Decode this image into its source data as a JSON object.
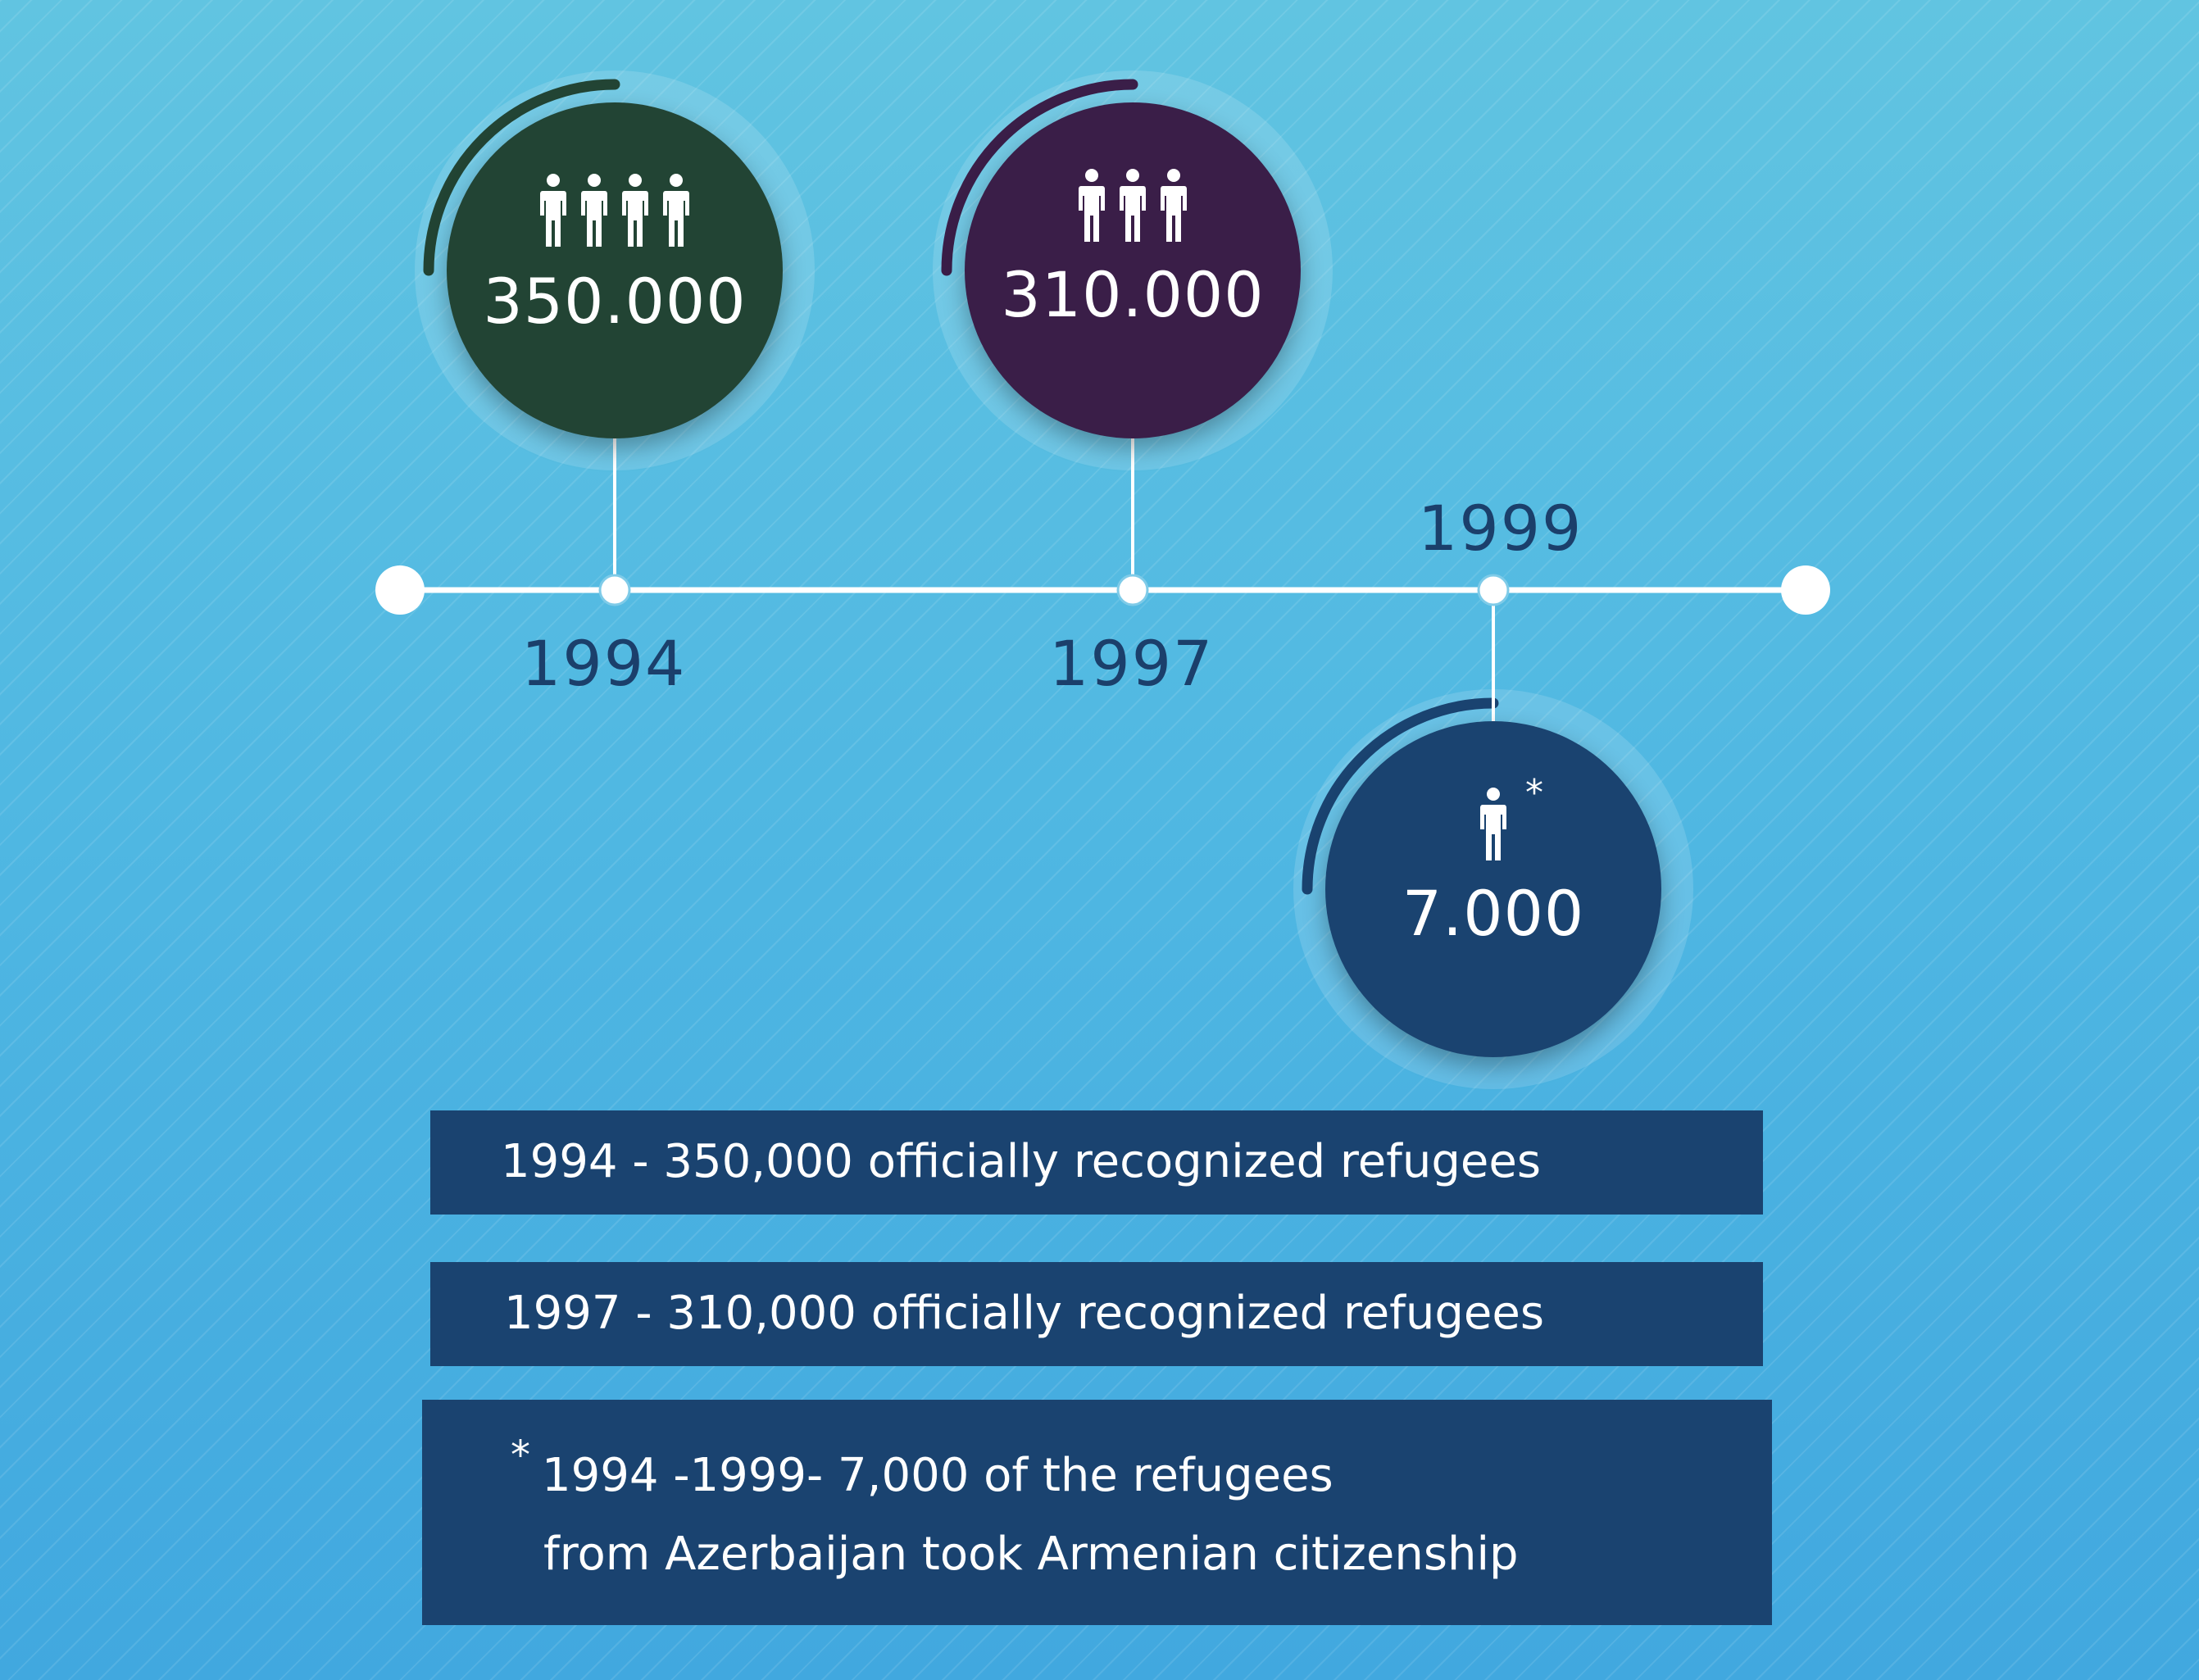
{
  "colors": {
    "axis": "#ffffff",
    "bubble_1994": "#224434",
    "bubble_1997": "#3a1e48",
    "bubble_1999": "#1a4370",
    "arc_1994": "#224434",
    "arc_1997": "#3a1e48",
    "arc_1999": "#1a4370",
    "year_text": "#1b3f6b",
    "note_box": "#1a4370",
    "text_light": "#ffffff"
  },
  "timeline": {
    "events": [
      {
        "year": "1994",
        "value": "350.000",
        "people_icons": 4,
        "people_icon": "person-icon"
      },
      {
        "year": "1997",
        "value": "310.000",
        "people_icons": 3,
        "people_icon": "person-icon"
      },
      {
        "year": "1999",
        "value": "7.000",
        "people_icons": 1,
        "people_icon": "person-icon",
        "marker": "*"
      }
    ]
  },
  "notes": {
    "line1": "1994  - 350,000 officially recognized refugees",
    "line2": "1997  - 310,000 officially recognized refugees",
    "footnote_marker": "*",
    "footnote_line1": "1994 -1999- 7,000 of the refugees",
    "footnote_line2": "from Azerbaijan took Armenian citizenship"
  }
}
